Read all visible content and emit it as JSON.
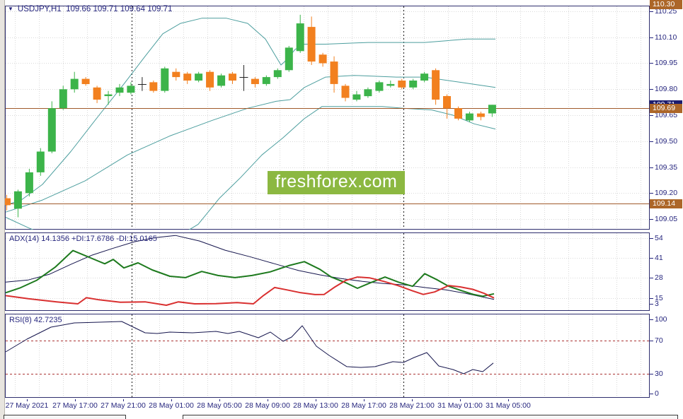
{
  "window": {
    "title": "USDJPY,H1  109.66 109.71 109.64 109.71",
    "dropdown_arrow": "▼"
  },
  "watermark": {
    "text": "freshforex.com",
    "bg": "#8cb841",
    "fg": "#ffffff"
  },
  "colors": {
    "bull": "#3cb44a",
    "bear": "#f2801f",
    "doji": "#222222",
    "band": "#4c9e9e",
    "hline": "#a0592b",
    "adx_line": "#15154d",
    "plus_di": "#1e7a1e",
    "minus_di": "#d93030",
    "rsi_line": "#15154d",
    "rsi_level": "#aa3333",
    "grid": "#d9d9d9",
    "separator": "#1a1a1a",
    "border": "#2e2e6e",
    "axis_text": "#26267e",
    "badge_brown": "#ac6628",
    "badge_navy": "#1c1c6e"
  },
  "price_axis": {
    "labels": [
      "110.25",
      "110.10",
      "109.95",
      "109.80",
      "109.65",
      "109.50",
      "109.35",
      "109.20",
      "109.05"
    ],
    "badges": [
      {
        "text": "110.30",
        "price": 110.3,
        "style": "brown"
      },
      {
        "text": "109.71",
        "price": 109.71,
        "style": "navy"
      },
      {
        "text": "109.69",
        "price": 109.69,
        "style": "brown"
      },
      {
        "text": "109.14",
        "price": 109.14,
        "style": "brown"
      }
    ]
  },
  "time_axis": {
    "labels": [
      "27 May 2021",
      "27 May 17:00",
      "27 May 21:00",
      "28 May 01:00",
      "28 May 05:00",
      "28 May 09:00",
      "28 May 13:00",
      "28 May 17:00",
      "28 May 21:00",
      "31 May 01:00",
      "31 May 05:00"
    ],
    "centers_x": [
      38,
      106,
      174,
      242,
      310,
      378,
      446,
      514,
      582,
      650,
      718
    ]
  },
  "chart_data": {
    "type": "candlestick",
    "symbol": "USDJPY",
    "timeframe": "H1",
    "current_bar": {
      "open": 109.66,
      "high": 109.71,
      "low": 109.64,
      "close": 109.71
    },
    "ylim": [
      108.99,
      110.29
    ],
    "ohlc": [
      [
        109.17,
        109.19,
        109.1,
        109.13
      ],
      [
        109.11,
        109.22,
        109.06,
        109.21
      ],
      [
        109.2,
        109.34,
        109.18,
        109.32
      ],
      [
        109.32,
        109.46,
        109.3,
        109.44
      ],
      [
        109.44,
        109.73,
        109.43,
        109.69
      ],
      [
        109.69,
        109.82,
        109.68,
        109.8
      ],
      [
        109.8,
        109.9,
        109.78,
        109.86
      ],
      [
        109.86,
        109.87,
        109.82,
        109.83
      ],
      [
        109.81,
        109.82,
        109.72,
        109.74
      ],
      [
        109.76,
        109.79,
        109.71,
        109.77
      ],
      [
        109.78,
        109.83,
        109.76,
        109.81
      ],
      [
        109.78,
        109.84,
        109.77,
        109.82
      ],
      [
        109.83,
        109.87,
        109.79,
        109.83
      ],
      [
        109.84,
        109.85,
        109.78,
        109.79
      ],
      [
        109.79,
        109.93,
        109.78,
        109.92
      ],
      [
        109.9,
        109.92,
        109.85,
        109.87
      ],
      [
        109.89,
        109.9,
        109.83,
        109.85
      ],
      [
        109.85,
        109.9,
        109.84,
        109.89
      ],
      [
        109.9,
        109.91,
        109.79,
        109.81
      ],
      [
        109.82,
        109.89,
        109.81,
        109.88
      ],
      [
        109.89,
        109.9,
        109.83,
        109.85
      ],
      [
        109.87,
        109.94,
        109.79,
        109.87
      ],
      [
        109.86,
        109.87,
        109.81,
        109.83
      ],
      [
        109.83,
        109.88,
        109.82,
        109.87
      ],
      [
        109.87,
        109.92,
        109.86,
        109.91
      ],
      [
        109.91,
        110.05,
        109.9,
        110.04
      ],
      [
        110.02,
        110.23,
        110.01,
        110.18
      ],
      [
        110.16,
        110.22,
        109.94,
        109.96
      ],
      [
        110.0,
        110.01,
        109.93,
        109.95
      ],
      [
        109.96,
        109.99,
        109.78,
        109.83
      ],
      [
        109.82,
        109.83,
        109.73,
        109.75
      ],
      [
        109.74,
        109.79,
        109.73,
        109.77
      ],
      [
        109.76,
        109.81,
        109.75,
        109.8
      ],
      [
        109.79,
        109.85,
        109.78,
        109.84
      ],
      [
        109.82,
        109.85,
        109.81,
        109.83
      ],
      [
        109.85,
        109.86,
        109.8,
        109.81
      ],
      [
        109.81,
        109.86,
        109.8,
        109.85
      ],
      [
        109.85,
        109.9,
        109.84,
        109.89
      ],
      [
        109.91,
        109.92,
        109.71,
        109.74
      ],
      [
        109.76,
        109.77,
        109.63,
        109.69
      ],
      [
        109.69,
        109.7,
        109.62,
        109.63
      ],
      [
        109.62,
        109.67,
        109.61,
        109.66
      ],
      [
        109.66,
        109.67,
        109.62,
        109.64
      ],
      [
        109.66,
        109.71,
        109.64,
        109.71
      ]
    ],
    "bands": {
      "upper": [
        [
          8,
          109.13
        ],
        [
          30,
          109.16
        ],
        [
          60,
          109.25
        ],
        [
          100,
          109.44
        ],
        [
          140,
          109.65
        ],
        [
          175,
          109.83
        ],
        [
          205,
          109.99
        ],
        [
          230,
          110.12
        ],
        [
          255,
          110.18
        ],
        [
          285,
          110.21
        ],
        [
          320,
          110.21
        ],
        [
          350,
          110.18
        ],
        [
          375,
          110.09
        ],
        [
          397,
          109.94
        ],
        [
          405,
          109.97
        ],
        [
          417,
          110.03
        ],
        [
          430,
          110.06
        ],
        [
          460,
          110.06
        ],
        [
          520,
          110.07
        ],
        [
          560,
          110.07
        ],
        [
          600,
          110.07
        ],
        [
          630,
          110.08
        ],
        [
          660,
          110.09
        ],
        [
          700,
          110.09
        ]
      ],
      "middle": [
        [
          8,
          109.09
        ],
        [
          60,
          109.16
        ],
        [
          120,
          109.27
        ],
        [
          180,
          109.42
        ],
        [
          240,
          109.53
        ],
        [
          300,
          109.62
        ],
        [
          350,
          109.69
        ],
        [
          390,
          109.73
        ],
        [
          410,
          109.74
        ],
        [
          430,
          109.81
        ],
        [
          460,
          109.87
        ],
        [
          500,
          109.88
        ],
        [
          560,
          109.87
        ],
        [
          600,
          109.87
        ],
        [
          650,
          109.84
        ],
        [
          700,
          109.81
        ]
      ],
      "lower": [
        [
          8,
          109.06
        ],
        [
          40,
          109.0
        ],
        [
          80,
          108.93
        ],
        [
          150,
          108.85
        ],
        [
          220,
          108.91
        ],
        [
          260,
          108.97
        ],
        [
          280,
          109.02
        ],
        [
          310,
          109.17
        ],
        [
          340,
          109.29
        ],
        [
          370,
          109.42
        ],
        [
          400,
          109.52
        ],
        [
          430,
          109.63
        ],
        [
          455,
          109.7
        ],
        [
          500,
          109.7
        ],
        [
          540,
          109.7
        ],
        [
          570,
          109.69
        ],
        [
          610,
          109.68
        ],
        [
          640,
          109.65
        ],
        [
          670,
          109.6
        ],
        [
          700,
          109.57
        ]
      ]
    },
    "hlines": [
      109.69,
      109.14
    ],
    "day_separators_x": [
      186,
      570
    ],
    "indicators": {
      "adx": {
        "label": "ADX(14) 14.1356 +DI:17.6786 -DI:15.0165",
        "adx_value": 14.1356,
        "plus_di": 17.6786,
        "minus_di": 15.0165,
        "scale": [
          "54",
          "41",
          "28",
          "15",
          "3"
        ],
        "series": {
          "adx": [
            [
              8,
              25.3
            ],
            [
              40,
              26.7
            ],
            [
              70,
              30.4
            ],
            [
              100,
              36.8
            ],
            [
              130,
              42.8
            ],
            [
              160,
              47.3
            ],
            [
              190,
              51.5
            ],
            [
              220,
              54.2
            ],
            [
              248,
              55.6
            ],
            [
              282,
              52
            ],
            [
              318,
              46
            ],
            [
              353,
              41.8
            ],
            [
              388,
              37.2
            ],
            [
              422,
              32.8
            ],
            [
              452,
              30
            ],
            [
              482,
              27.6
            ],
            [
              512,
              25.8
            ],
            [
              542,
              24.4
            ],
            [
              572,
              23.5
            ],
            [
              602,
              21.7
            ],
            [
              630,
              20.3
            ],
            [
              658,
              18
            ],
            [
              678,
              16
            ],
            [
              698,
              14.1
            ]
          ],
          "plus_di": [
            [
              8,
              18.4
            ],
            [
              28,
              21.5
            ],
            [
              52,
              26.5
            ],
            [
              78,
              35
            ],
            [
              103,
              45.8
            ],
            [
              128,
              41
            ],
            [
              148,
              37.2
            ],
            [
              160,
              40
            ],
            [
              175,
              34.5
            ],
            [
              195,
              37.8
            ],
            [
              215,
              33.2
            ],
            [
              240,
              29.1
            ],
            [
              262,
              28.2
            ],
            [
              285,
              32.2
            ],
            [
              308,
              29.6
            ],
            [
              332,
              28.2
            ],
            [
              356,
              29.6
            ],
            [
              382,
              32
            ],
            [
              408,
              36
            ],
            [
              430,
              38.6
            ],
            [
              452,
              33.6
            ],
            [
              468,
              28.6
            ],
            [
              488,
              25
            ],
            [
              505,
              21.3
            ],
            [
              524,
              25
            ],
            [
              544,
              28.6
            ],
            [
              563,
              25.3
            ],
            [
              583,
              22.6
            ],
            [
              600,
              30.8
            ],
            [
              618,
              26.7
            ],
            [
              634,
              22.6
            ],
            [
              652,
              19.8
            ],
            [
              668,
              17.4
            ],
            [
              682,
              16.1
            ],
            [
              698,
              17.7
            ]
          ],
          "minus_di": [
            [
              8,
              16.5
            ],
            [
              40,
              14.5
            ],
            [
              80,
              12.5
            ],
            [
              110,
              11.2
            ],
            [
              122,
              15.2
            ],
            [
              140,
              13.8
            ],
            [
              170,
              12.2
            ],
            [
              205,
              12.5
            ],
            [
              235,
              10.3
            ],
            [
              252,
              12.5
            ],
            [
              275,
              11.2
            ],
            [
              305,
              11.3
            ],
            [
              335,
              12.0
            ],
            [
              358,
              11.2
            ],
            [
              372,
              16.5
            ],
            [
              388,
              21.8
            ],
            [
              405,
              20.3
            ],
            [
              425,
              18.4
            ],
            [
              445,
              17.2
            ],
            [
              458,
              17.3
            ],
            [
              472,
              21.8
            ],
            [
              488,
              26.3
            ],
            [
              505,
              28.6
            ],
            [
              522,
              28.1
            ],
            [
              542,
              25.8
            ],
            [
              562,
              23.1
            ],
            [
              582,
              19.8
            ],
            [
              598,
              17.3
            ],
            [
              614,
              18.9
            ],
            [
              634,
              23.1
            ],
            [
              650,
              22.2
            ],
            [
              668,
              20.6
            ],
            [
              684,
              18.0
            ],
            [
              698,
              15.0
            ]
          ]
        }
      },
      "rsi": {
        "label": "RSI(8) 42.7235",
        "value": 42.7235,
        "scale": [
          "100",
          "70",
          "30",
          "0"
        ],
        "levels": [
          70,
          30
        ],
        "series": [
          [
            8,
            56.3
          ],
          [
            38,
            71.7
          ],
          [
            72,
            86.3
          ],
          [
            105,
            91.5
          ],
          [
            140,
            92.3
          ],
          [
            172,
            93.2
          ],
          [
            205,
            79.4
          ],
          [
            222,
            78.6
          ],
          [
            240,
            80.3
          ],
          [
            272,
            79.4
          ],
          [
            305,
            81.2
          ],
          [
            322,
            78.6
          ],
          [
            338,
            81.2
          ],
          [
            365,
            73.4
          ],
          [
            382,
            80.3
          ],
          [
            400,
            69.1
          ],
          [
            412,
            74.3
          ],
          [
            427,
            88
          ],
          [
            447,
            63.1
          ],
          [
            465,
            52
          ],
          [
            490,
            38.3
          ],
          [
            510,
            37.4
          ],
          [
            530,
            38.3
          ],
          [
            555,
            44.3
          ],
          [
            570,
            43.4
          ],
          [
            585,
            49.4
          ],
          [
            603,
            55.4
          ],
          [
            620,
            39.1
          ],
          [
            640,
            34.8
          ],
          [
            655,
            29.7
          ],
          [
            668,
            34.8
          ],
          [
            682,
            32.2
          ],
          [
            697,
            42.7
          ]
        ]
      }
    }
  }
}
